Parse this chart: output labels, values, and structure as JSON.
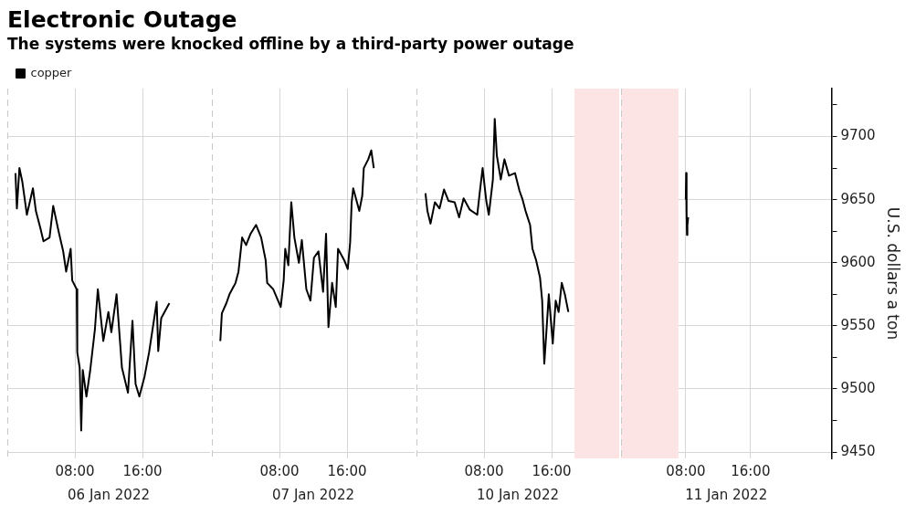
{
  "chart_data": [
    {
      "type": "line",
      "title": "Electronic Outage",
      "subtitle": "The systems were knocked offline by a third-party power outage",
      "xlabel": "06 Jan 2022",
      "x": [
        "2022-01-06T00:58",
        "2022-01-06T01:08",
        "2022-01-06T01:26",
        "2022-01-06T01:47",
        "2022-01-06T02:19",
        "2022-01-06T03:02",
        "2022-01-06T03:23",
        "2022-01-06T03:56",
        "2022-01-06T04:17",
        "2022-01-06T05:00",
        "2022-01-06T05:26",
        "2022-01-06T06:04",
        "2022-01-06T06:37",
        "2022-01-06T06:58",
        "2022-01-06T07:30",
        "2022-01-06T07:41",
        "2022-01-06T08:13",
        "2022-01-06T08:17",
        "2022-01-06T08:34",
        "2022-01-06T08:45",
        "2022-01-06T08:56",
        "2022-01-06T09:22",
        "2022-01-06T09:49",
        "2022-01-06T10:22",
        "2022-01-06T10:43",
        "2022-01-06T11:22",
        "2022-01-06T11:58",
        "2022-01-06T12:19",
        "2022-01-06T12:56",
        "2022-01-06T13:34",
        "2022-01-06T14:17",
        "2022-01-06T14:49",
        "2022-01-06T15:11",
        "2022-01-06T15:38",
        "2022-01-06T16:15",
        "2022-01-06T16:47",
        "2022-01-06T17:41",
        "2022-01-06T17:52",
        "2022-01-06T18:13",
        "2022-01-06T19:11"
      ],
      "series": [
        {
          "name": "copper",
          "color": "#000000",
          "values": [
            9671,
            9643,
            9675,
            9664,
            9638,
            9659,
            9641,
            9627,
            9617,
            9620,
            9645,
            9625,
            9609,
            9593,
            9611,
            9586,
            9579,
            9529,
            9517,
            9467,
            9515,
            9494,
            9515,
            9547,
            9579,
            9538,
            9561,
            9545,
            9575,
            9517,
            9497,
            9554,
            9504,
            9494,
            9510,
            9529,
            9569,
            9530,
            9556,
            9568
          ]
        }
      ],
      "xlim": [
        "2022-01-06T00:00",
        "2022-01-07T00:00"
      ],
      "xticks": [
        {
          "value": "2022-01-06T08:00",
          "label": "08:00"
        },
        {
          "value": "2022-01-06T16:00",
          "label": "16:00"
        }
      ],
      "ylim": [
        9445,
        9738
      ],
      "yticks": [
        9450,
        9500,
        9550,
        9600,
        9650,
        9700
      ],
      "ref_lines": [
        {
          "axis": "x",
          "value": "2022-01-06T00:00",
          "color": "#c8c8c8",
          "line_style": "dashed"
        }
      ],
      "grid": true,
      "legend": "top left",
      "tick_labels": "x",
      "marker": "none",
      "line_style": "solid"
    },
    {
      "type": "line",
      "xlabel": "07 Jan 2022",
      "x": [
        "2022-01-07T01:00",
        "2022-01-07T01:11",
        "2022-01-07T01:43",
        "2022-01-07T02:05",
        "2022-01-07T02:48",
        "2022-01-07T03:09",
        "2022-01-07T03:35",
        "2022-01-07T04:03",
        "2022-01-07T04:35",
        "2022-01-07T05:14",
        "2022-01-07T05:50",
        "2022-01-07T06:22",
        "2022-01-07T06:33",
        "2022-01-07T07:16",
        "2022-01-07T08:09",
        "2022-01-07T08:30",
        "2022-01-07T08:41",
        "2022-01-07T09:03",
        "2022-01-07T09:24",
        "2022-01-07T09:46",
        "2022-01-07T10:18",
        "2022-01-07T10:39",
        "2022-01-07T11:11",
        "2022-01-07T11:40",
        "2022-01-07T12:05",
        "2022-01-07T12:37",
        "2022-01-07T13:10",
        "2022-01-07T13:31",
        "2022-01-07T13:48",
        "2022-01-07T14:14",
        "2022-01-07T14:40",
        "2022-01-07T14:56",
        "2022-01-07T15:40",
        "2022-01-07T16:05",
        "2022-01-07T16:22",
        "2022-01-07T16:33",
        "2022-01-07T16:44",
        "2022-01-07T17:27",
        "2022-01-07T17:48",
        "2022-01-07T17:59",
        "2022-01-07T18:31",
        "2022-01-07T18:52",
        "2022-01-07T19:10"
      ],
      "series": [
        {
          "color": "#000000",
          "values": [
            9538,
            9560,
            9568,
            9575,
            9584,
            9593,
            9620,
            9614,
            9623,
            9630,
            9620,
            9602,
            9584,
            9579,
            9565,
            9586,
            9611,
            9598,
            9648,
            9620,
            9600,
            9618,
            9579,
            9570,
            9604,
            9609,
            9577,
            9623,
            9549,
            9584,
            9565,
            9611,
            9602,
            9595,
            9616,
            9648,
            9659,
            9641,
            9653,
            9675,
            9682,
            9689,
            9675
          ]
        }
      ],
      "xlim": [
        "2022-01-07T00:00",
        "2022-01-08T00:00"
      ],
      "xticks": [
        {
          "value": "2022-01-07T08:00",
          "label": "08:00"
        },
        {
          "value": "2022-01-07T16:00",
          "label": "16:00"
        }
      ],
      "ylim": [
        9445,
        9738
      ],
      "yticks": [
        9450,
        9500,
        9550,
        9600,
        9650,
        9700
      ],
      "ref_lines": [
        {
          "axis": "x",
          "value": "2022-01-07T00:00",
          "color": "#c8c8c8",
          "line_style": "dashed"
        }
      ],
      "grid": true,
      "tick_labels": "x",
      "marker": "none",
      "line_style": "solid"
    },
    {
      "type": "line",
      "xlabel": "10 Jan 2022",
      "x": [
        "2022-01-10T01:04",
        "2022-01-10T01:18",
        "2022-01-10T01:40",
        "2022-01-10T02:11",
        "2022-01-10T02:44",
        "2022-01-10T03:16",
        "2022-01-10T03:48",
        "2022-01-10T04:31",
        "2022-01-10T05:03",
        "2022-01-10T05:35",
        "2022-01-10T06:19",
        "2022-01-10T07:12",
        "2022-01-10T07:29",
        "2022-01-10T07:50",
        "2022-01-10T08:16",
        "2022-01-10T08:34",
        "2022-01-10T09:03",
        "2022-01-10T09:16",
        "2022-01-10T09:31",
        "2022-01-10T09:59",
        "2022-01-10T10:25",
        "2022-01-10T10:57",
        "2022-01-10T11:40",
        "2022-01-10T12:12",
        "2022-01-10T12:34",
        "2022-01-10T12:55",
        "2022-01-10T13:27",
        "2022-01-10T13:44",
        "2022-01-10T14:10",
        "2022-01-10T14:38",
        "2022-01-10T14:53",
        "2022-01-10T15:08",
        "2022-01-10T15:25",
        "2022-01-10T15:40",
        "2022-01-10T16:08",
        "2022-01-10T16:29",
        "2022-01-10T16:50",
        "2022-01-10T17:12",
        "2022-01-10T17:34",
        "2022-01-10T17:59"
      ],
      "series": [
        {
          "color": "#000000",
          "values": [
            9655,
            9641,
            9631,
            9648,
            9643,
            9658,
            9649,
            9648,
            9636,
            9651,
            9642,
            9638,
            9655,
            9675,
            9649,
            9638,
            9666,
            9714,
            9685,
            9666,
            9682,
            9669,
            9671,
            9657,
            9650,
            9641,
            9630,
            9611,
            9602,
            9588,
            9570,
            9520,
            9549,
            9575,
            9536,
            9570,
            9561,
            9584,
            9575,
            9561
          ]
        }
      ],
      "xlim": [
        "2022-01-10T00:00",
        "2022-01-11T00:00"
      ],
      "xticks": [
        {
          "value": "2022-01-10T08:00",
          "label": "08:00"
        },
        {
          "value": "2022-01-10T16:00",
          "label": "16:00"
        }
      ],
      "ylim": [
        9445,
        9738
      ],
      "yticks": [
        9450,
        9500,
        9550,
        9600,
        9650,
        9700
      ],
      "ref_lines": [
        {
          "axis": "x",
          "value": "2022-01-10T00:00",
          "color": "#c8c8c8",
          "line_style": "dashed"
        }
      ],
      "bands": [
        {
          "axis": "x",
          "from": "2022-01-10T18:42",
          "to": "2022-01-11T00:00",
          "color": "#fde4e4"
        }
      ],
      "grid": true,
      "tick_labels": "x",
      "marker": "none",
      "line_style": "solid"
    },
    {
      "type": "line",
      "xlabel": "11 Jan 2022",
      "ylabel": "U.S. dollars a ton",
      "x": [
        "2022-01-11T08:00",
        "2022-01-11T08:03",
        "2022-01-11T08:06",
        "2022-01-11T08:09",
        "2022-01-11T08:12",
        "2022-01-11T08:18"
      ],
      "series": [
        {
          "color": "#000000",
          "values": [
            9650,
            9671,
            9640,
            9622,
            9630,
            9636
          ]
        }
      ],
      "xlim": [
        "2022-01-11T00:00",
        "2022-01-12T02:00"
      ],
      "xticks": [
        {
          "value": "2022-01-11T08:00",
          "label": "08:00"
        },
        {
          "value": "2022-01-11T16:00",
          "label": "16:00"
        }
      ],
      "ylim": [
        9445,
        9738
      ],
      "yticks": [
        9450,
        {
          "value": 9475,
          "label": null
        },
        9500,
        {
          "value": 9525,
          "label": null
        },
        9550,
        {
          "value": 9575,
          "label": null
        },
        9600,
        {
          "value": 9625,
          "label": null
        },
        9650,
        {
          "value": 9675,
          "label": null
        },
        9700,
        {
          "value": 9725,
          "label": null
        }
      ],
      "ref_lines": [
        {
          "axis": "x",
          "value": "2022-01-11T00:00",
          "color": "#c8c8c8",
          "line_style": "dashed"
        }
      ],
      "bands": [
        {
          "axis": "x",
          "from": "2022-01-11T00:00",
          "to": "2022-01-11T07:06",
          "color": "#fde4e4"
        }
      ],
      "grid": true,
      "marker": "none",
      "line_style": "solid"
    }
  ]
}
